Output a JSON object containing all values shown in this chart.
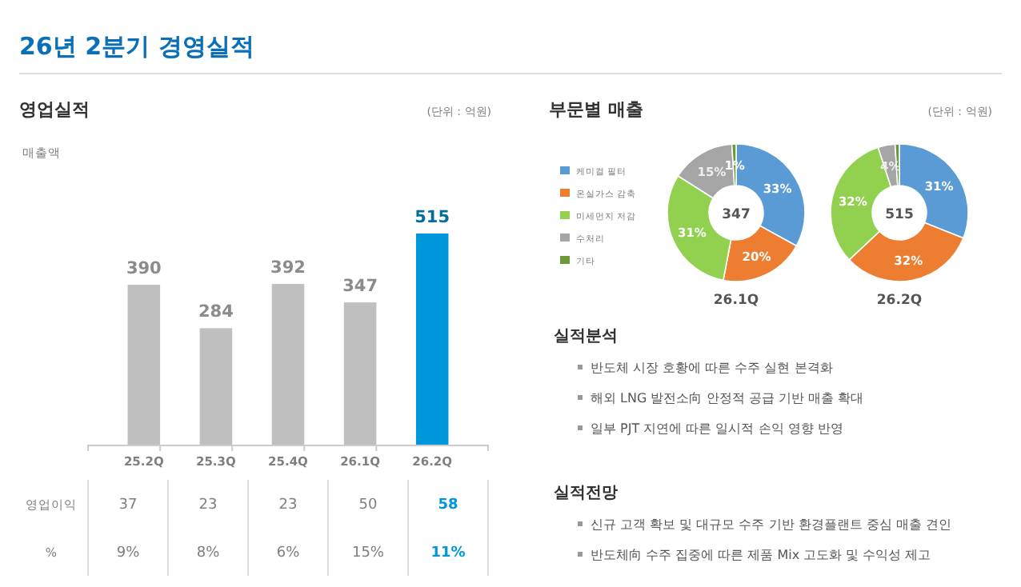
{
  "chart_data": [
    {
      "type": "bar",
      "title": "26년 2분기 경영실적",
      "subtitle": "영업실적",
      "ylabel": "매출액",
      "annotations": [
        "(단위 : 억원)"
      ],
      "categories": [
        "25.2Q",
        "25.3Q",
        "25.4Q",
        "26.1Q",
        "26.2Q"
      ],
      "values": [
        390,
        284,
        392,
        347,
        515
      ],
      "colors": [
        "#bfbfbf",
        "#bfbfbf",
        "#bfbfbf",
        "#bfbfbf",
        "#0096db"
      ],
      "data_labels": true
    },
    {
      "type": "heatmap",
      "categories": [
        null,
        null,
        null,
        null,
        null
      ],
      "y_categories": [
        "영업이익",
        "%"
      ],
      "cells": [
        [
          37,
          23,
          23,
          50,
          58
        ],
        [
          9,
          8,
          6,
          15,
          11
        ]
      ],
      "cell_labels": [
        [
          "37",
          "23",
          "23",
          "50",
          "58"
        ],
        [
          "9%",
          "8%",
          "6%",
          "15%",
          "11%"
        ]
      ]
    },
    {
      "type": "donut",
      "title": "부문별 매출",
      "annotations": [
        "(단위 : 억원)",
        "347"
      ],
      "xlabel": "26.1Q",
      "categories": [
        "케미컬 필터",
        "온실가스 감축",
        "미세먼지 저감",
        "수처리",
        "기타"
      ],
      "values": [
        33,
        20,
        31,
        15,
        1
      ],
      "value_labels": [
        "33%",
        "20%",
        "31%",
        "15%",
        "1%"
      ],
      "colors": [
        "#5b9bd5",
        "#ed7d31",
        "#92d050",
        "#a5a5a5",
        "#6a9a3c"
      ],
      "legend": "left"
    },
    {
      "type": "donut",
      "annotations": [
        "515"
      ],
      "xlabel": "26.2Q",
      "categories": [
        null,
        null,
        null,
        null,
        null
      ],
      "values": [
        31,
        32,
        32,
        4,
        1
      ],
      "value_labels": [
        "31%",
        "32%",
        "32%",
        "4%",
        null
      ],
      "colors": [
        "#5b9bd5",
        "#ed7d31",
        "#92d050",
        "#a5a5a5",
        "#6a9a3c"
      ]
    },
    {
      "type": "other",
      "title": "실적분석",
      "annotations": [
        "반도체 시장 호황에 따른 수주 실현 본격화",
        "해외 LNG 발전소向 안정적 공급 기반 매출 확대",
        "일부 PJT 지연에 따른 일시적 손익 영향 반영"
      ]
    },
    {
      "type": "other",
      "title": "실적전망",
      "annotations": [
        "신규 고객 확보 및 대규모 수주 기반 환경플랜트 중심 매출 견인",
        "반도체向 수주 집중에 따른 제품 Mix 고도화 및 수익성 제고"
      ]
    }
  ]
}
